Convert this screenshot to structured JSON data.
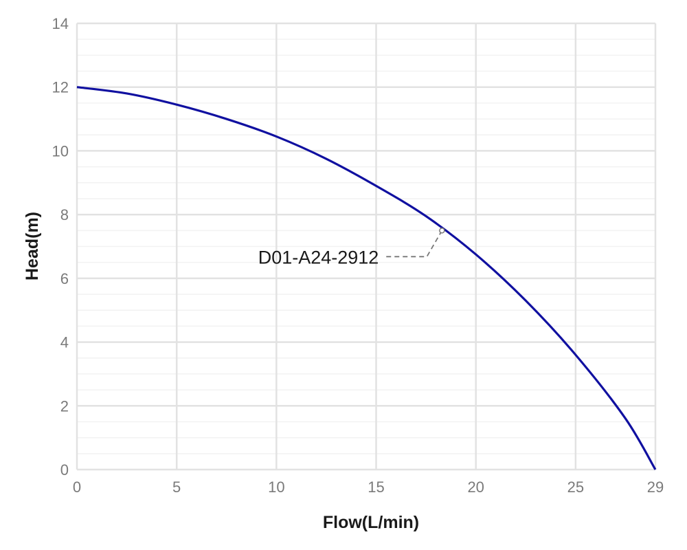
{
  "chart_data": {
    "type": "line",
    "title": "",
    "xlabel": "Flow(L/min)",
    "ylabel": "Head(m)",
    "xlim": [
      0,
      29
    ],
    "ylim": [
      0,
      14
    ],
    "x_ticks": [
      0,
      5,
      10,
      15,
      20,
      25,
      29
    ],
    "y_ticks": [
      0,
      2,
      4,
      6,
      8,
      10,
      12,
      14
    ],
    "x_tick_labels": [
      "0",
      "5",
      "10",
      "15",
      "20",
      "25",
      "29"
    ],
    "y_tick_labels": [
      "0",
      "2",
      "4",
      "6",
      "8",
      "10",
      "12",
      "14"
    ],
    "grid": true,
    "colors": {
      "series": "#1010a0",
      "grid_major": "#e2e2e2",
      "grid_minor": "#f2f2f2",
      "leader": "#777777"
    },
    "series": [
      {
        "x": [
          0,
          2.5,
          5,
          7.5,
          10,
          12.5,
          15,
          17.5,
          20,
          22.5,
          25,
          27.5,
          29
        ],
        "y": [
          12.0,
          11.8,
          11.45,
          11.0,
          10.45,
          9.75,
          8.9,
          7.95,
          6.75,
          5.3,
          3.6,
          1.6,
          0.0
        ]
      }
    ],
    "annotations": [
      {
        "text": "D01-A24-2912",
        "x": 18.3,
        "y": 7.5
      }
    ]
  }
}
